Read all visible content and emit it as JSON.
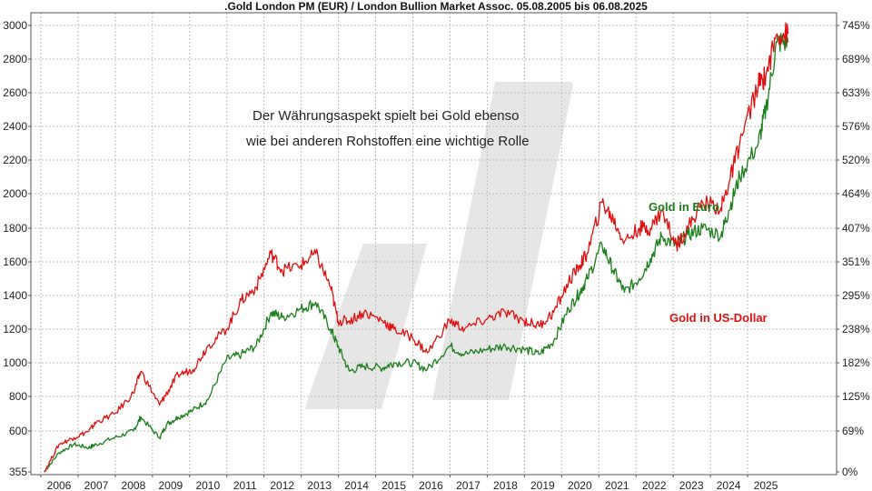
{
  "chart_data": {
    "type": "line",
    "title": ".Gold London PM (EUR) / London Bullion Market Assoc. 05.08.2005 bis 06.08.2025",
    "xlabel": "",
    "ylabel": "",
    "x_ticks": [
      "2006",
      "2007",
      "2008",
      "2009",
      "2010",
      "2011",
      "2012",
      "2013",
      "2014",
      "2015",
      "2016",
      "2017",
      "2018",
      "2019",
      "2020",
      "2021",
      "2022",
      "2023",
      "2024",
      "2025"
    ],
    "y_left_ticks": [
      "355",
      "600",
      "800",
      "1000",
      "1200",
      "1400",
      "1600",
      "1800",
      "2000",
      "2200",
      "2400",
      "2600",
      "2800",
      "3000"
    ],
    "y_right_ticks": [
      "0%",
      "69%",
      "125%",
      "182%",
      "238%",
      "295%",
      "351%",
      "407%",
      "464%",
      "520%",
      "576%",
      "633%",
      "689%",
      "745%"
    ],
    "ylim": [
      355,
      3000
    ],
    "grid": true,
    "annotation_lines": [
      "Der Währungsaspekt spielt bei Gold ebenso",
      "wie bei anderen Rohstoffen eine wichtige Rolle"
    ],
    "series": [
      {
        "name": "Gold in Euro",
        "color": "#1a7f1a",
        "x": [
          2005.6,
          2006.0,
          2006.4,
          2006.8,
          2007.0,
          2007.5,
          2008.0,
          2008.2,
          2008.7,
          2008.9,
          2009.2,
          2009.6,
          2010.0,
          2010.5,
          2010.9,
          2011.3,
          2011.7,
          2012.0,
          2012.5,
          2012.9,
          2013.3,
          2013.5,
          2013.8,
          2014.2,
          2014.7,
          2015.0,
          2015.5,
          2015.9,
          2016.5,
          2016.9,
          2017.5,
          2018.0,
          2018.5,
          2018.9,
          2019.3,
          2019.7,
          2020.0,
          2020.2,
          2020.6,
          2020.9,
          2021.2,
          2021.6,
          2021.9,
          2022.2,
          2022.6,
          2022.9,
          2023.3,
          2023.8,
          2024.0,
          2024.3,
          2024.8,
          2025.0,
          2025.3,
          2025.6
        ],
        "y": [
          355,
          470,
          520,
          500,
          520,
          560,
          600,
          680,
          560,
          640,
          680,
          720,
          780,
          1020,
          1050,
          1100,
          1300,
          1270,
          1320,
          1360,
          1200,
          1100,
          950,
          980,
          970,
          1000,
          1000,
          960,
          1100,
          1050,
          1080,
          1100,
          1080,
          1050,
          1130,
          1320,
          1420,
          1500,
          1700,
          1550,
          1420,
          1500,
          1620,
          1750,
          1700,
          1760,
          1800,
          1760,
          1900,
          2100,
          2300,
          2500,
          2900,
          2900
        ]
      },
      {
        "name": "Gold in US-Dollar",
        "color": "#e01010",
        "x": [
          2005.6,
          2006.0,
          2006.4,
          2006.8,
          2007.0,
          2007.5,
          2008.0,
          2008.2,
          2008.7,
          2008.9,
          2009.2,
          2009.6,
          2010.0,
          2010.5,
          2010.9,
          2011.3,
          2011.7,
          2012.0,
          2012.5,
          2012.9,
          2013.3,
          2013.5,
          2013.8,
          2014.2,
          2014.7,
          2015.0,
          2015.5,
          2015.9,
          2016.5,
          2016.9,
          2017.5,
          2018.0,
          2018.5,
          2018.9,
          2019.3,
          2019.7,
          2020.0,
          2020.2,
          2020.6,
          2020.9,
          2021.2,
          2021.6,
          2021.9,
          2022.2,
          2022.6,
          2022.9,
          2023.3,
          2023.8,
          2024.0,
          2024.3,
          2024.8,
          2025.0,
          2025.3,
          2025.6
        ],
        "y": [
          355,
          520,
          560,
          600,
          650,
          700,
          820,
          950,
          750,
          820,
          930,
          960,
          1100,
          1200,
          1370,
          1450,
          1650,
          1550,
          1580,
          1650,
          1450,
          1250,
          1250,
          1300,
          1250,
          1200,
          1150,
          1060,
          1250,
          1200,
          1260,
          1300,
          1250,
          1220,
          1300,
          1480,
          1580,
          1650,
          1950,
          1850,
          1720,
          1800,
          1800,
          1900,
          1700,
          1800,
          1950,
          1920,
          2050,
          2300,
          2650,
          2700,
          2950,
          2950
        ]
      }
    ]
  }
}
